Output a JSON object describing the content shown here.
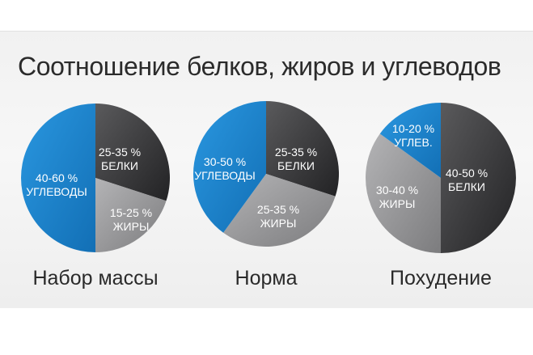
{
  "title": "Соотношение белков, жиров и углеводов",
  "colors": {
    "protein": "#3a3a3c",
    "fat": "#9a9a9c",
    "carbs": "#1c86cf",
    "slice_text": "#ffffff"
  },
  "chart_data": [
    {
      "type": "pie",
      "label": "Набор массы",
      "slices": [
        {
          "key": "protein",
          "text": [
            "25-35 %",
            "БЕЛКИ"
          ],
          "value": 30
        },
        {
          "key": "fat",
          "text": [
            "15-25 %",
            "ЖИРЫ"
          ],
          "value": 20
        },
        {
          "key": "carbs",
          "text": [
            "40-60 %",
            "УГЛЕВОДЫ"
          ],
          "value": 50
        }
      ]
    },
    {
      "type": "pie",
      "label": "Норма",
      "slices": [
        {
          "key": "protein",
          "text": [
            "25-35 %",
            "БЕЛКИ"
          ],
          "value": 30
        },
        {
          "key": "fat",
          "text": [
            "25-35 %",
            "ЖИРЫ"
          ],
          "value": 30
        },
        {
          "key": "carbs",
          "text": [
            "30-50 %",
            "УГЛЕВОДЫ"
          ],
          "value": 40
        }
      ]
    },
    {
      "type": "pie",
      "label": "Похудение",
      "slices": [
        {
          "key": "protein",
          "text": [
            "40-50 %",
            "БЕЛКИ"
          ],
          "value": 50
        },
        {
          "key": "fat",
          "text": [
            "30-40 %",
            "ЖИРЫ"
          ],
          "value": 35
        },
        {
          "key": "carbs",
          "text": [
            "10-20 %",
            "УГЛЕВ."
          ],
          "value": 15
        }
      ]
    }
  ]
}
